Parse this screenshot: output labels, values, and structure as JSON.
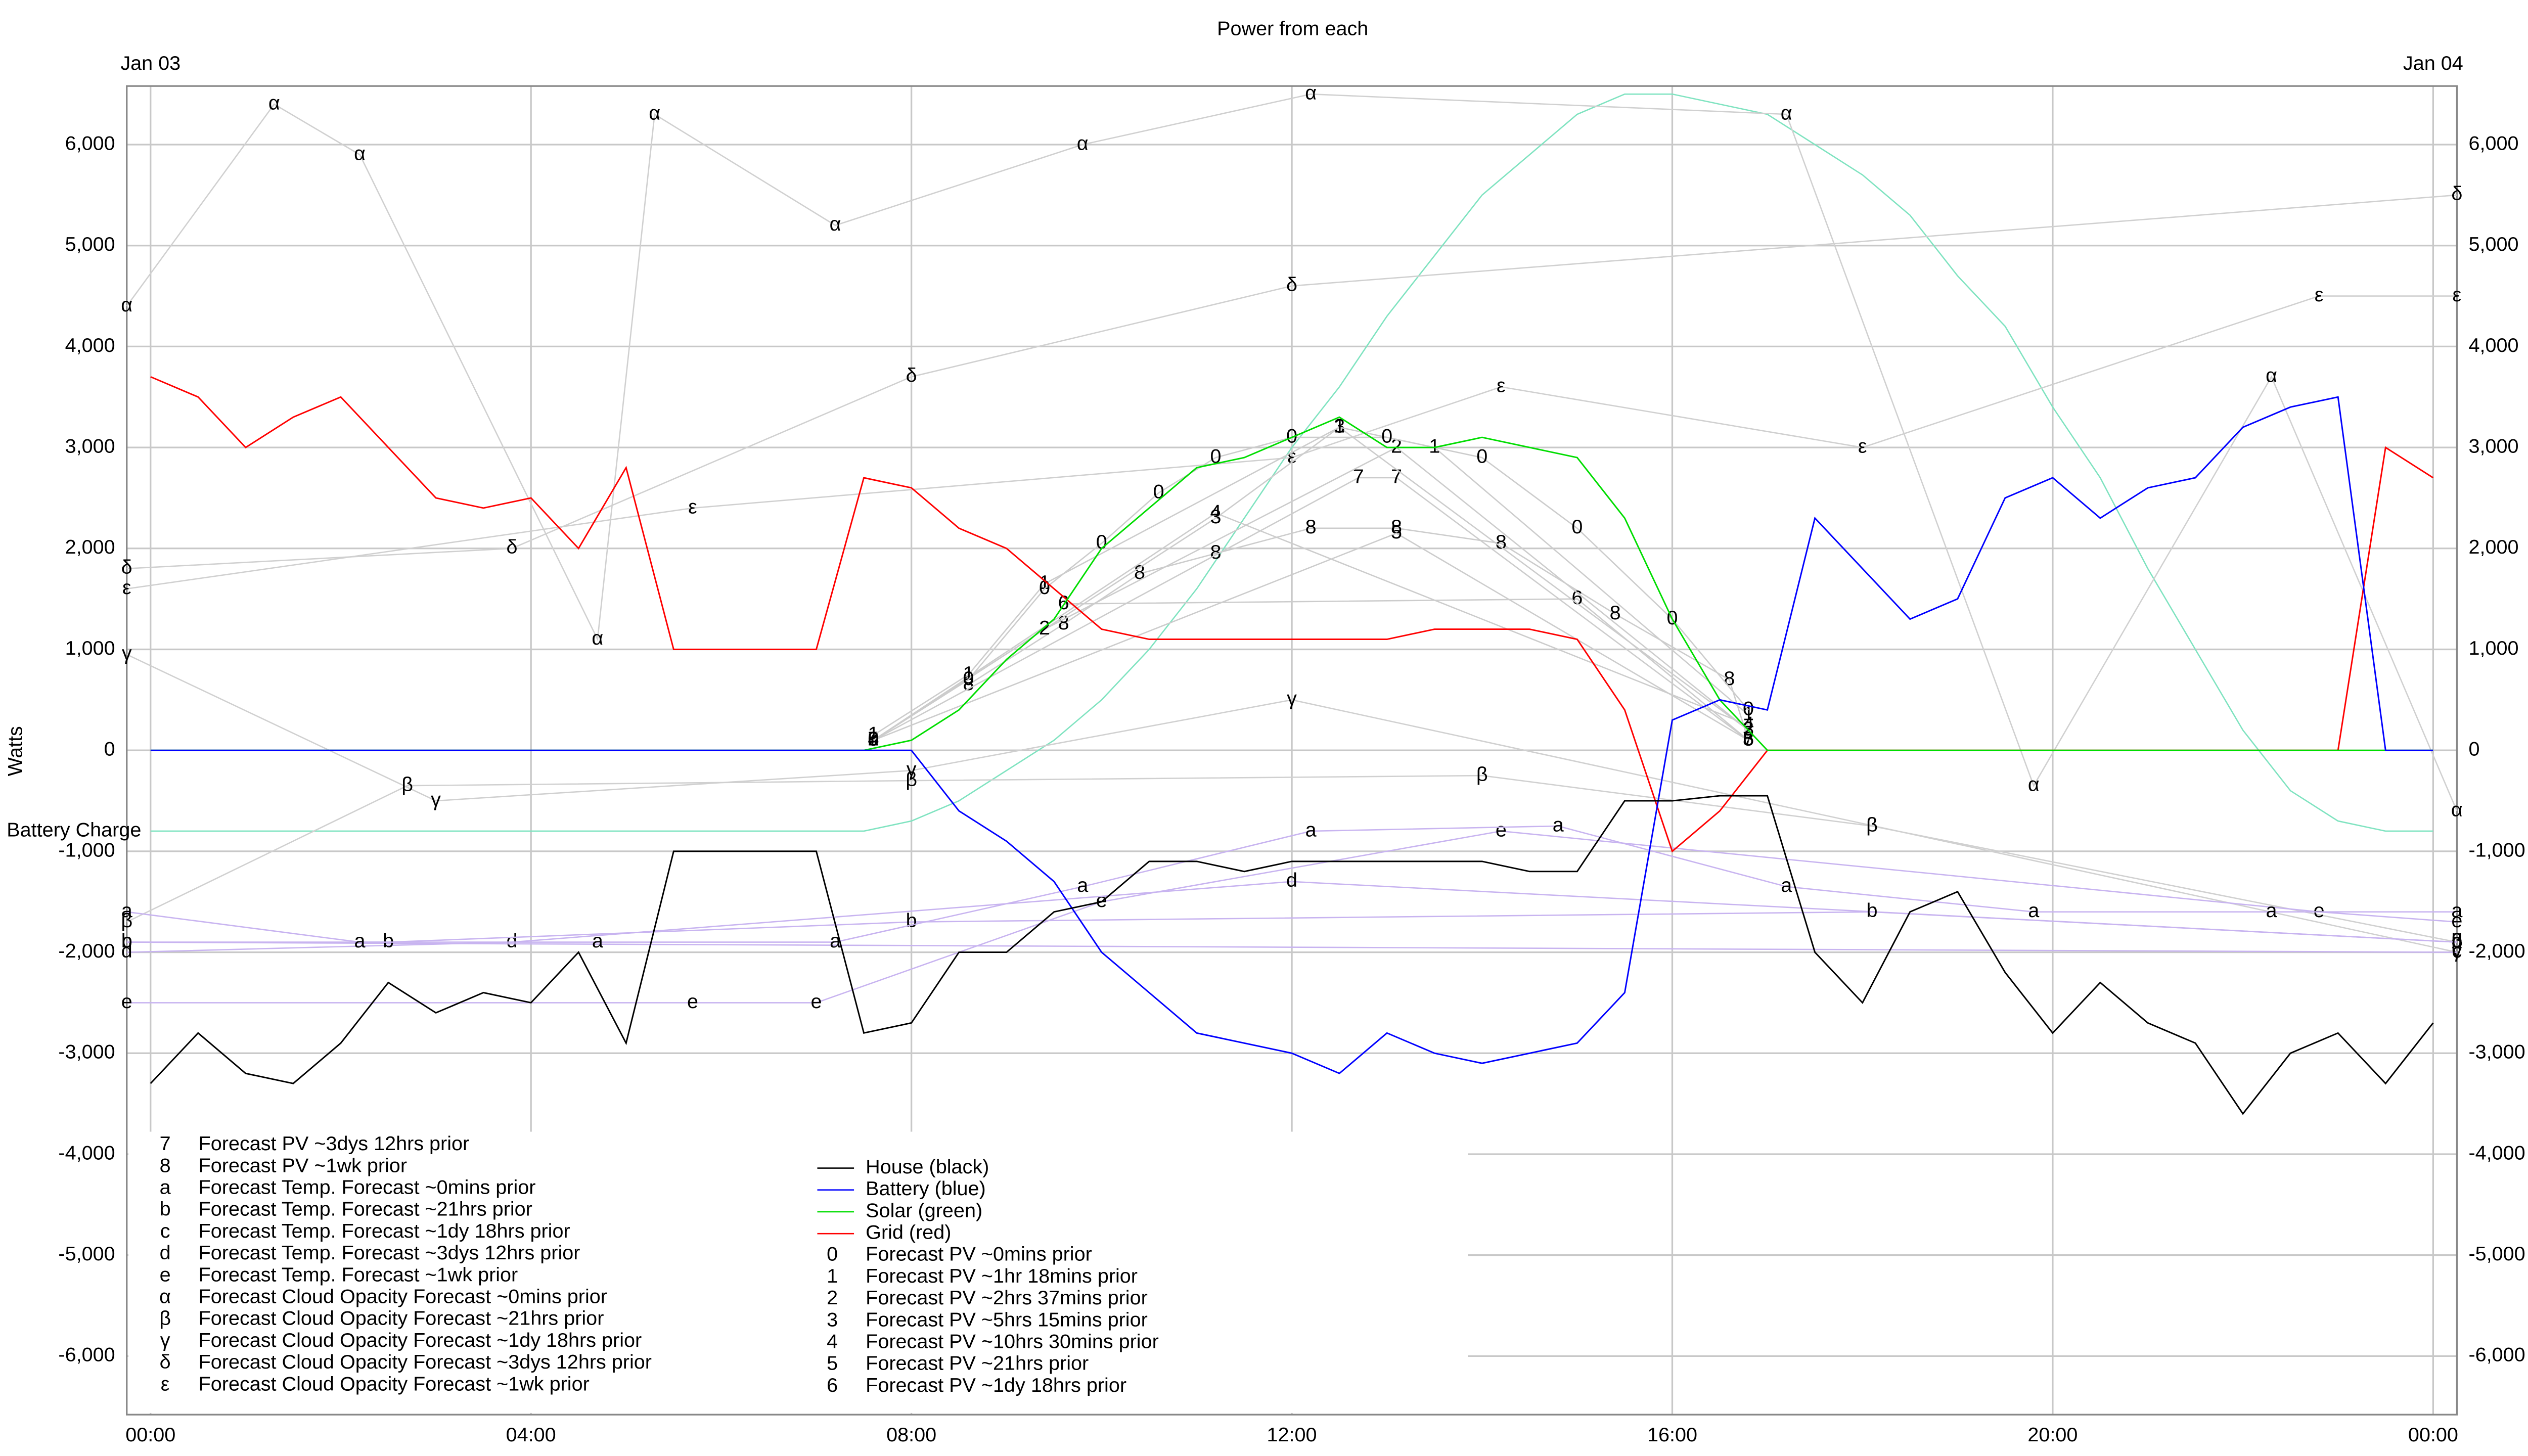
{
  "chart_data": {
    "type": "line",
    "title": "Power from each",
    "ylabel": "Watts",
    "xlim": [
      -0.25,
      24.25
    ],
    "ylim": [
      -6580,
      6580
    ],
    "xticks": [
      {
        "value": 0,
        "label": "00:00"
      },
      {
        "value": 4,
        "label": "04:00"
      },
      {
        "value": 8,
        "label": "08:00"
      },
      {
        "value": 12,
        "label": "12:00"
      },
      {
        "value": 16,
        "label": "16:00"
      },
      {
        "value": 20,
        "label": "20:00"
      },
      {
        "value": 24,
        "label": "00:00"
      }
    ],
    "top_xticks": [
      {
        "value": 0,
        "label": "Jan 03"
      },
      {
        "value": 24,
        "label": "Jan 04"
      }
    ],
    "yticks": [
      {
        "value": -6000,
        "label": "-6,000"
      },
      {
        "value": -5000,
        "label": "-5,000"
      },
      {
        "value": -4000,
        "label": "-4,000"
      },
      {
        "value": -3000,
        "label": "-3,000"
      },
      {
        "value": -2000,
        "label": "-2,000"
      },
      {
        "value": -1000,
        "label": "-1,000"
      },
      0,
      {
        "value": 1000,
        "label": "1,000"
      },
      {
        "value": 2000,
        "label": "2,000"
      },
      {
        "value": 3000,
        "label": "3,000"
      },
      {
        "value": 4000,
        "label": "4,000"
      },
      {
        "value": 5000,
        "label": "5,000"
      },
      {
        "value": 6000,
        "label": "6,000"
      }
    ],
    "grid": true,
    "x": [
      0,
      0.5,
      1,
      1.5,
      2,
      2.5,
      3,
      3.5,
      4,
      4.5,
      5,
      5.5,
      6,
      6.5,
      7,
      7.5,
      8,
      8.5,
      9,
      9.5,
      10,
      10.5,
      11,
      11.5,
      12,
      12.5,
      13,
      13.5,
      14,
      14.5,
      15,
      15.5,
      16,
      16.5,
      17,
      17.5,
      18,
      18.5,
      19,
      19.5,
      20,
      20.5,
      21,
      21.5,
      22,
      22.5,
      23,
      23.5,
      24
    ],
    "battery_charge": {
      "name": "Battery Charge",
      "color": "#7fe3c0",
      "values": [
        -800,
        -800,
        -800,
        -800,
        -800,
        -800,
        -800,
        -800,
        -800,
        -800,
        -800,
        -800,
        -800,
        -800,
        -800,
        -800,
        -700,
        -500,
        -200,
        100,
        500,
        1000,
        1600,
        2300,
        3000,
        3600,
        4300,
        4900,
        5500,
        5900,
        6300,
        6500,
        6500,
        6400,
        6300,
        6000,
        5700,
        5300,
        4700,
        4200,
        3400,
        2700,
        1800,
        1000,
        200,
        -400,
        -700,
        -800,
        -800
      ]
    },
    "series": [
      {
        "name": "House (black)",
        "color": "#000000",
        "values": [
          -3300,
          -2800,
          -3200,
          -3300,
          -2900,
          -2300,
          -2600,
          -2400,
          -2500,
          -2000,
          -2900,
          -1000,
          -1000,
          -1000,
          -1000,
          -2800,
          -2700,
          -2000,
          -2000,
          -1600,
          -1500,
          -1100,
          -1100,
          -1200,
          -1100,
          -1100,
          -1100,
          -1100,
          -1100,
          -1200,
          -1200,
          -500,
          -500,
          -450,
          -450,
          -2000,
          -2500,
          -1600,
          -1400,
          -2200,
          -2800,
          -2300,
          -2700,
          -2900,
          -3600,
          -3000,
          -2800,
          -3300,
          -2700
        ]
      },
      {
        "name": "Battery (blue)",
        "color": "#0000ff",
        "values": [
          0,
          0,
          0,
          0,
          0,
          0,
          0,
          0,
          0,
          0,
          0,
          0,
          0,
          0,
          0,
          0,
          0,
          -600,
          -900,
          -1300,
          -2000,
          -2400,
          -2800,
          -2900,
          -3000,
          -3200,
          -2800,
          -3000,
          -3100,
          -3000,
          -2900,
          -2400,
          300,
          500,
          400,
          2300,
          1800,
          1300,
          1500,
          2500,
          2700,
          2300,
          2600,
          2700,
          3200,
          3400,
          3500,
          0,
          0
        ]
      },
      {
        "name": "Solar (green)",
        "color": "#00dd00",
        "values": [
          0,
          0,
          0,
          0,
          0,
          0,
          0,
          0,
          0,
          0,
          0,
          0,
          0,
          0,
          0,
          0,
          100,
          400,
          900,
          1300,
          2000,
          2400,
          2800,
          2900,
          3100,
          3300,
          3000,
          3000,
          3100,
          3000,
          2900,
          2300,
          1300,
          500,
          0,
          0,
          0,
          0,
          0,
          0,
          0,
          0,
          0,
          0,
          0,
          0,
          0,
          0,
          0
        ]
      },
      {
        "name": "Grid (red)",
        "color": "#ff0000",
        "values": [
          3700,
          3500,
          3000,
          3300,
          3500,
          3000,
          2500,
          2400,
          2500,
          2000,
          2800,
          1000,
          1000,
          1000,
          1000,
          2700,
          2600,
          2200,
          2000,
          1600,
          1200,
          1100,
          1100,
          1100,
          1100,
          1100,
          1100,
          1200,
          1200,
          1200,
          1100,
          400,
          -1000,
          -600,
          0,
          0,
          0,
          0,
          0,
          0,
          0,
          0,
          0,
          0,
          0,
          0,
          0,
          3000,
          2700
        ]
      },
      {
        "name": "Forecast PV ~0mins prior",
        "marker": "0",
        "color": "#cccccc",
        "x": [
          7.6,
          8.6,
          9.4,
          10,
          10.6,
          11.2,
          12,
          13,
          14,
          15,
          16,
          16.8
        ],
        "values": [
          100,
          700,
          1600,
          2050,
          2550,
          2900,
          3100,
          3100,
          2900,
          2200,
          1300,
          400
        ]
      },
      {
        "name": "Forecast PV ~1hr 18mins prior",
        "marker": "1",
        "color": "#cccccc",
        "x": [
          7.6,
          8.6,
          9.4,
          12.5,
          13.5,
          16.8
        ],
        "values": [
          150,
          750,
          1650,
          3200,
          3000,
          350
        ]
      },
      {
        "name": "Forecast PV ~2hrs 37mins prior",
        "marker": "2",
        "color": "#cccccc",
        "x": [
          7.6,
          9.4,
          13.1,
          16.8
        ],
        "values": [
          100,
          1200,
          3000,
          200
        ]
      },
      {
        "name": "Forecast PV ~5hrs 15mins prior",
        "marker": "3",
        "color": "#cccccc",
        "x": [
          7.6,
          11.2,
          12.5,
          16.8
        ],
        "values": [
          100,
          2300,
          3200,
          200
        ]
      },
      {
        "name": "Forecast PV ~10hrs 30mins prior",
        "marker": "4",
        "color": "#cccccc",
        "x": [
          7.6,
          11.2,
          16.8
        ],
        "values": [
          100,
          2350,
          250
        ]
      },
      {
        "name": "Forecast PV ~21hrs prior",
        "marker": "5",
        "color": "#cccccc",
        "x": [
          7.6,
          13.1,
          16.8
        ],
        "values": [
          100,
          2150,
          100
        ]
      },
      {
        "name": "Forecast PV ~1dy 18hrs prior",
        "marker": "6",
        "color": "#cccccc",
        "x": [
          9.6,
          15,
          16.8
        ],
        "values": [
          1450,
          1500,
          100
        ]
      },
      {
        "name": "Forecast PV ~3dys 12hrs prior",
        "marker": "7",
        "color": "#cccccc",
        "x": [
          7.6,
          12.7,
          13.1,
          16.8
        ],
        "values": [
          100,
          2700,
          2700,
          100
        ]
      },
      {
        "name": "Forecast PV ~1wk prior",
        "marker": "8",
        "color": "#cccccc",
        "x": [
          8.6,
          9.6,
          10.4,
          11.2,
          12.2,
          13.1,
          14.2,
          15.4,
          16.6,
          16.8
        ],
        "values": [
          650,
          1250,
          1750,
          1950,
          2200,
          2200,
          2050,
          1350,
          700,
          100
        ]
      },
      {
        "name": "Forecast Temp. Forecast ~0mins prior",
        "marker": "a",
        "color": "#c8b4f0",
        "x": [
          -0.25,
          2.2,
          4.7,
          7.2,
          9.8,
          12.2,
          14.8,
          17.2,
          19.8,
          22.3,
          24.25
        ],
        "values": [
          -1600,
          -1900,
          -1900,
          -1900,
          -1350,
          -800,
          -750,
          -1350,
          -1600,
          -1600,
          -1600
        ]
      },
      {
        "name": "Forecast Temp. Forecast ~21hrs prior",
        "marker": "b",
        "color": "#c8b4f0",
        "x": [
          -0.25,
          2.5,
          8,
          18.1,
          24.25
        ],
        "values": [
          -1900,
          -1900,
          -1700,
          -1600,
          -1900
        ]
      },
      {
        "name": "Forecast Temp. Forecast ~1dy 18hrs prior",
        "marker": "c",
        "color": "#c8b4f0",
        "x": [
          -0.25,
          24.25
        ],
        "values": [
          -1900,
          -2000
        ]
      },
      {
        "name": "Forecast Temp. Forecast ~3dys 12hrs prior",
        "marker": "d",
        "color": "#c8b4f0",
        "x": [
          -0.25,
          3.8,
          12,
          24.25
        ],
        "values": [
          -2000,
          -1900,
          -1300,
          -1900
        ]
      },
      {
        "name": "Forecast Temp. Forecast ~1wk prior",
        "marker": "e",
        "color": "#c8b4f0",
        "x": [
          -0.25,
          5.7,
          7,
          10,
          14.2,
          22.8,
          24.25
        ],
        "values": [
          -2500,
          -2500,
          -2500,
          -1500,
          -800,
          -1600,
          -1700
        ]
      },
      {
        "name": "Forecast Cloud Opacity Forecast ~0mins prior",
        "marker": "α",
        "color": "#d0d0d0",
        "x": [
          -0.25,
          1.3,
          2.2,
          4.7,
          5.3,
          7.2,
          9.8,
          12.2,
          17.2,
          19.8,
          22.3,
          24.25
        ],
        "values": [
          4400,
          6400,
          5900,
          1100,
          6300,
          5200,
          6000,
          6500,
          6300,
          -350,
          3700,
          -600
        ]
      },
      {
        "name": "Forecast Cloud Opacity Forecast ~21hrs prior",
        "marker": "β",
        "color": "#d0d0d0",
        "x": [
          -0.25,
          2.7,
          8,
          14,
          18.1,
          24.25
        ],
        "values": [
          -1700,
          -350,
          -300,
          -250,
          -750,
          -1900
        ]
      },
      {
        "name": "Forecast Cloud Opacity Forecast ~1dy 18hrs prior",
        "marker": "γ",
        "color": "#d0d0d0",
        "x": [
          -0.25,
          3,
          8,
          12,
          24.25
        ],
        "values": [
          950,
          -500,
          -200,
          500,
          -2000
        ]
      },
      {
        "name": "Forecast Cloud Opacity Forecast ~3dys 12hrs prior",
        "marker": "δ",
        "color": "#d0d0d0",
        "x": [
          -0.25,
          3.8,
          8,
          12,
          24.25
        ],
        "values": [
          1800,
          2000,
          3700,
          4600,
          5500
        ]
      },
      {
        "name": "Forecast Cloud Opacity Forecast ~1wk prior",
        "marker": "ε",
        "color": "#d0d0d0",
        "x": [
          -0.25,
          5.7,
          12,
          14.2,
          18,
          22.8,
          24.25
        ],
        "values": [
          1600,
          2400,
          2900,
          3600,
          3000,
          4500,
          4500
        ]
      }
    ]
  }
}
